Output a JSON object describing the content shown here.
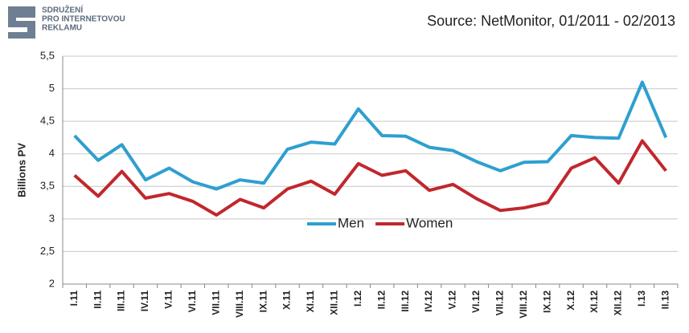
{
  "logo": {
    "lines": [
      "SDRUŽENÍ",
      "PRO INTERNETOVOU",
      "REKLAMU"
    ]
  },
  "chart_data": {
    "type": "line",
    "title": "Source: NetMonitor, 01/2011 - 02/2013",
    "y_label": "Billions PV",
    "categories": [
      "I.11",
      "II.11",
      "III.11",
      "IV.11",
      "V.11",
      "VI.11",
      "VII.11",
      "VIII.11",
      "IX.11",
      "X.11",
      "XI.11",
      "XII.11",
      "I.12",
      "II.12",
      "III.12",
      "IV.12",
      "V.12",
      "VI.12",
      "VII.12",
      "VIII.12",
      "IX.12",
      "X.12",
      "XI.12",
      "XII.12",
      "I.13",
      "II.13"
    ],
    "series": [
      {
        "name": "Men",
        "color": "#2e9fcf",
        "values": [
          4.28,
          3.9,
          4.14,
          3.6,
          3.78,
          3.57,
          3.46,
          3.6,
          3.55,
          4.07,
          4.18,
          4.15,
          4.69,
          4.28,
          4.27,
          4.1,
          4.05,
          3.88,
          3.74,
          3.87,
          3.88,
          4.28,
          4.25,
          4.24,
          5.1,
          4.25
        ]
      },
      {
        "name": "Women",
        "color": "#c1272d",
        "values": [
          3.67,
          3.35,
          3.73,
          3.32,
          3.39,
          3.27,
          3.06,
          3.3,
          3.17,
          3.46,
          3.58,
          3.38,
          3.85,
          3.67,
          3.74,
          3.44,
          3.53,
          3.31,
          3.13,
          3.17,
          3.25,
          3.78,
          3.94,
          3.55,
          4.2,
          3.74
        ]
      }
    ],
    "ylim": [
      2,
      5.5
    ],
    "yticks": [
      2,
      {
        "value": 2.5,
        "label": "2,5"
      },
      3,
      {
        "value": 3.5,
        "label": "3,5"
      },
      4,
      {
        "value": 4.5,
        "label": "4,5"
      },
      5,
      {
        "value": 5.5,
        "label": "5,5"
      }
    ],
    "grid": true,
    "legend": "center"
  }
}
